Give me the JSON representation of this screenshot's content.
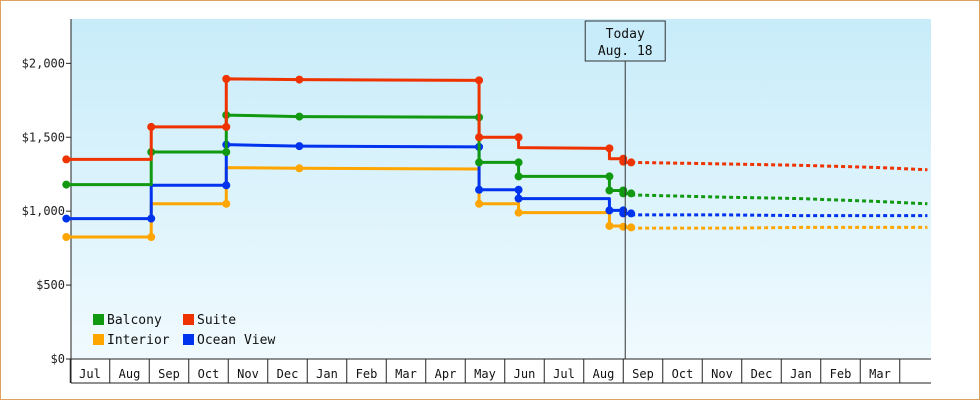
{
  "chart_data": {
    "type": "line",
    "title": "",
    "xlabel": "",
    "ylabel": "",
    "ylim": [
      0,
      2300
    ],
    "y_ticks": [
      {
        "value": 0,
        "label": "$0"
      },
      {
        "value": 500,
        "label": "$500"
      },
      {
        "value": 1000,
        "label": "$1,000"
      },
      {
        "value": 1500,
        "label": "$1,500"
      },
      {
        "value": 2000,
        "label": "$2,000"
      }
    ],
    "x_months": [
      "Jul",
      "Aug",
      "Sep",
      "Oct",
      "Nov",
      "Dec",
      "Jan",
      "Feb",
      "Mar",
      "Apr",
      "May",
      "Jun",
      "Jul",
      "Aug",
      "Sep",
      "Oct",
      "Nov",
      "Dec",
      "Jan",
      "Feb",
      "Mar"
    ],
    "x_range": [
      0,
      21.2
    ],
    "today": {
      "line1": "Today",
      "line2": "Aug. 18",
      "x": 13.55
    },
    "grid": false,
    "legend_position": "bottom-left",
    "legend": [
      {
        "name": "Balcony",
        "color": "#119911"
      },
      {
        "name": "Suite",
        "color": "#ee3300"
      },
      {
        "name": "Interior",
        "color": "#ffa500"
      },
      {
        "name": "Ocean View",
        "color": "#0033ee"
      }
    ],
    "series": [
      {
        "name": "Suite",
        "color": "#ee3300",
        "points": [
          [
            -0.6,
            1350
          ],
          [
            1.55,
            1350
          ],
          [
            1.55,
            1570
          ],
          [
            3.45,
            1570
          ],
          [
            3.45,
            1895
          ],
          [
            5.3,
            1890
          ],
          [
            9.85,
            1885
          ],
          [
            9.85,
            1500
          ],
          [
            10.85,
            1500
          ],
          [
            10.85,
            1430
          ],
          [
            13.15,
            1425
          ],
          [
            13.15,
            1355
          ],
          [
            13.5,
            1355
          ],
          [
            13.5,
            1330
          ],
          [
            13.7,
            1330
          ]
        ],
        "markers": [
          [
            -0.6,
            1350
          ],
          [
            1.55,
            1570
          ],
          [
            3.45,
            1570
          ],
          [
            3.45,
            1895
          ],
          [
            5.3,
            1890
          ],
          [
            9.85,
            1885
          ],
          [
            9.85,
            1500
          ],
          [
            10.85,
            1500
          ],
          [
            13.15,
            1425
          ],
          [
            13.5,
            1355
          ],
          [
            13.5,
            1335
          ],
          [
            13.7,
            1330
          ]
        ],
        "forecast": [
          [
            13.7,
            1330
          ],
          [
            16.0,
            1320
          ],
          [
            18.0,
            1310
          ],
          [
            20.0,
            1295
          ],
          [
            21.2,
            1280
          ]
        ]
      },
      {
        "name": "Balcony",
        "color": "#119911",
        "points": [
          [
            -0.6,
            1180
          ],
          [
            1.55,
            1180
          ],
          [
            1.55,
            1400
          ],
          [
            3.45,
            1400
          ],
          [
            3.45,
            1650
          ],
          [
            5.3,
            1640
          ],
          [
            9.85,
            1635
          ],
          [
            9.85,
            1330
          ],
          [
            10.85,
            1330
          ],
          [
            10.85,
            1235
          ],
          [
            13.15,
            1235
          ],
          [
            13.15,
            1140
          ],
          [
            13.5,
            1140
          ],
          [
            13.5,
            1120
          ],
          [
            13.7,
            1120
          ]
        ],
        "markers": [
          [
            -0.6,
            1180
          ],
          [
            1.55,
            1400
          ],
          [
            3.45,
            1400
          ],
          [
            3.45,
            1650
          ],
          [
            5.3,
            1640
          ],
          [
            9.85,
            1635
          ],
          [
            9.85,
            1330
          ],
          [
            10.85,
            1330
          ],
          [
            10.85,
            1235
          ],
          [
            13.15,
            1235
          ],
          [
            13.15,
            1140
          ],
          [
            13.5,
            1140
          ],
          [
            13.5,
            1120
          ],
          [
            13.7,
            1120
          ]
        ],
        "forecast": [
          [
            13.7,
            1110
          ],
          [
            16.0,
            1095
          ],
          [
            18.0,
            1085
          ],
          [
            20.0,
            1065
          ],
          [
            21.2,
            1050
          ]
        ]
      },
      {
        "name": "Ocean View",
        "color": "#0033ee",
        "points": [
          [
            -0.6,
            950
          ],
          [
            1.55,
            950
          ],
          [
            1.55,
            1175
          ],
          [
            3.45,
            1175
          ],
          [
            3.45,
            1450
          ],
          [
            5.3,
            1440
          ],
          [
            9.85,
            1435
          ],
          [
            9.85,
            1145
          ],
          [
            10.85,
            1145
          ],
          [
            10.85,
            1085
          ],
          [
            13.15,
            1085
          ],
          [
            13.15,
            1005
          ],
          [
            13.5,
            1005
          ],
          [
            13.5,
            985
          ],
          [
            13.7,
            985
          ]
        ],
        "markers": [
          [
            -0.6,
            950
          ],
          [
            1.55,
            950
          ],
          [
            3.45,
            1175
          ],
          [
            3.45,
            1450
          ],
          [
            5.3,
            1440
          ],
          [
            9.85,
            1435
          ],
          [
            9.85,
            1145
          ],
          [
            10.85,
            1145
          ],
          [
            10.85,
            1085
          ],
          [
            13.15,
            1005
          ],
          [
            13.5,
            1005
          ],
          [
            13.5,
            985
          ],
          [
            13.7,
            985
          ]
        ],
        "forecast": [
          [
            13.7,
            975
          ],
          [
            16.0,
            975
          ],
          [
            18.0,
            970
          ],
          [
            21.2,
            970
          ]
        ]
      },
      {
        "name": "Interior",
        "color": "#ffa500",
        "points": [
          [
            -0.6,
            825
          ],
          [
            1.55,
            825
          ],
          [
            1.55,
            1050
          ],
          [
            3.45,
            1050
          ],
          [
            3.45,
            1295
          ],
          [
            5.3,
            1290
          ],
          [
            9.85,
            1285
          ],
          [
            9.85,
            1050
          ],
          [
            10.85,
            1050
          ],
          [
            10.85,
            990
          ],
          [
            13.15,
            990
          ],
          [
            13.15,
            900
          ],
          [
            13.5,
            900
          ],
          [
            13.5,
            890
          ],
          [
            13.7,
            890
          ]
        ],
        "markers": [
          [
            -0.6,
            825
          ],
          [
            1.55,
            825
          ],
          [
            3.45,
            1050
          ],
          [
            5.3,
            1290
          ],
          [
            9.85,
            1050
          ],
          [
            10.85,
            990
          ],
          [
            13.15,
            900
          ],
          [
            13.5,
            895
          ],
          [
            13.7,
            890
          ]
        ],
        "forecast": [
          [
            13.7,
            885
          ],
          [
            16.0,
            885
          ],
          [
            18.0,
            890
          ],
          [
            21.2,
            890
          ]
        ]
      }
    ]
  }
}
